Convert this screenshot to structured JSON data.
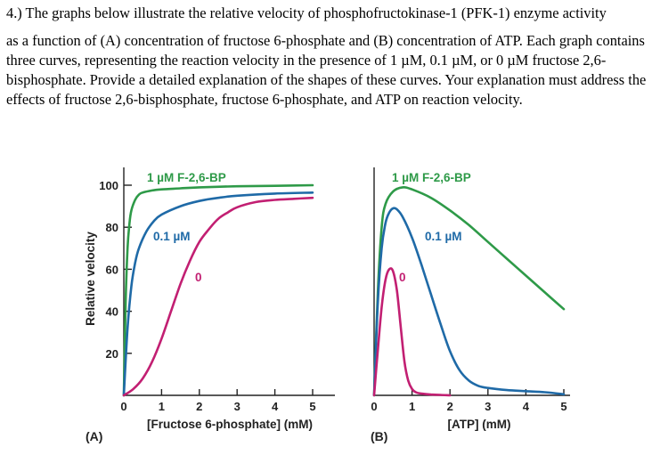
{
  "question": {
    "line1": "4.) The graphs below illustrate the relative velocity of phosphofructokinase-1 (PFK-1) enzyme activity",
    "line2": "as a function of (A) concentration of fructose 6-phosphate and (B) concentration of ATP.  Each graph contains three curves, representing the reaction velocity in the presence of 1 µM, 0.1 µM, or 0 µM fructose 2,6-bisphosphate.  Provide a detailed explanation of the shapes of these curves.  Your explanation must address the effects of fructose 2,6-bisphosphate, fructose 6-phosphate, and ATP on reaction velocity."
  },
  "colors": {
    "green": "#2e9a48",
    "blue": "#1f6aa7",
    "magenta": "#c21f72",
    "axis": "#222222"
  },
  "chart_data": [
    {
      "type": "line",
      "panel_label": "(A)",
      "xlabel": "[Fructose 6-phosphate] (mM)",
      "ylabel": "Relative velocity",
      "xlim": [
        0,
        5
      ],
      "ylim": [
        0,
        100
      ],
      "x_ticks": [
        "0",
        "1",
        "2",
        "3",
        "4",
        "5"
      ],
      "y_ticks": [
        "20",
        "40",
        "60",
        "80",
        "100"
      ],
      "series": [
        {
          "name": "1 µM F-2,6-BP",
          "color": "#2e9a48",
          "x": [
            0,
            0.05,
            0.1,
            0.15,
            0.2,
            0.3,
            0.4,
            0.5,
            0.75,
            1,
            1.5,
            2,
            3,
            4,
            5
          ],
          "y": [
            0,
            45,
            70,
            82,
            88,
            93,
            95.5,
            96.5,
            97.5,
            98,
            98.5,
            99,
            99.5,
            99.7,
            100
          ]
        },
        {
          "name": "0.1 µM",
          "color": "#1f6aa7",
          "x": [
            0,
            0.1,
            0.2,
            0.3,
            0.4,
            0.6,
            0.8,
            1,
            1.5,
            2,
            2.5,
            3,
            4,
            5
          ],
          "y": [
            0,
            32,
            52,
            63,
            70,
            78,
            83,
            86,
            90,
            92.5,
            94,
            95,
            96,
            96.5
          ]
        },
        {
          "name": "0",
          "color": "#c21f72",
          "x": [
            0,
            0.25,
            0.5,
            0.75,
            1,
            1.25,
            1.5,
            1.75,
            2,
            2.25,
            2.5,
            2.75,
            3,
            3.5,
            4,
            4.5,
            5
          ],
          "y": [
            0,
            3,
            8,
            16,
            27,
            40,
            53,
            64,
            73,
            79,
            84,
            87,
            89.5,
            92,
            93,
            93.5,
            94
          ]
        }
      ]
    },
    {
      "type": "line",
      "panel_label": "(B)",
      "xlabel": "[ATP] (mM)",
      "ylabel": "",
      "xlim": [
        0,
        5
      ],
      "ylim": [
        0,
        100
      ],
      "x_ticks": [
        "0",
        "1",
        "2",
        "3",
        "4",
        "5"
      ],
      "y_ticks": [],
      "series": [
        {
          "name": "1 µM F-2,6-BP",
          "color": "#2e9a48",
          "x": [
            0,
            0.1,
            0.2,
            0.3,
            0.5,
            0.75,
            1,
            1.5,
            2,
            2.5,
            3,
            3.5,
            4,
            4.5,
            5
          ],
          "y": [
            0,
            50,
            80,
            91,
            97,
            99,
            98,
            94,
            88,
            81,
            73,
            65,
            57,
            49,
            41
          ]
        },
        {
          "name": "0.1 µM",
          "color": "#1f6aa7",
          "x": [
            0,
            0.1,
            0.2,
            0.3,
            0.4,
            0.5,
            0.6,
            0.75,
            1,
            1.25,
            1.5,
            1.75,
            2,
            2.25,
            2.5,
            2.75,
            3,
            3.5,
            4,
            4.5,
            5
          ],
          "y": [
            0,
            45,
            70,
            82,
            87,
            89,
            88.5,
            85,
            75,
            62,
            48,
            34,
            21,
            12,
            7,
            4.5,
            3.5,
            2.5,
            2,
            1.5,
            0.5
          ]
        },
        {
          "name": "0",
          "color": "#c21f72",
          "x": [
            0,
            0.1,
            0.2,
            0.3,
            0.4,
            0.5,
            0.6,
            0.7,
            0.8,
            0.9,
            1,
            1.1,
            1.25,
            1.5,
            1.75,
            2
          ],
          "y": [
            0,
            22,
            42,
            55,
            60,
            59,
            50,
            33,
            16,
            7,
            3,
            1.5,
            0.8,
            0.4,
            0.2,
            0
          ]
        }
      ]
    }
  ]
}
